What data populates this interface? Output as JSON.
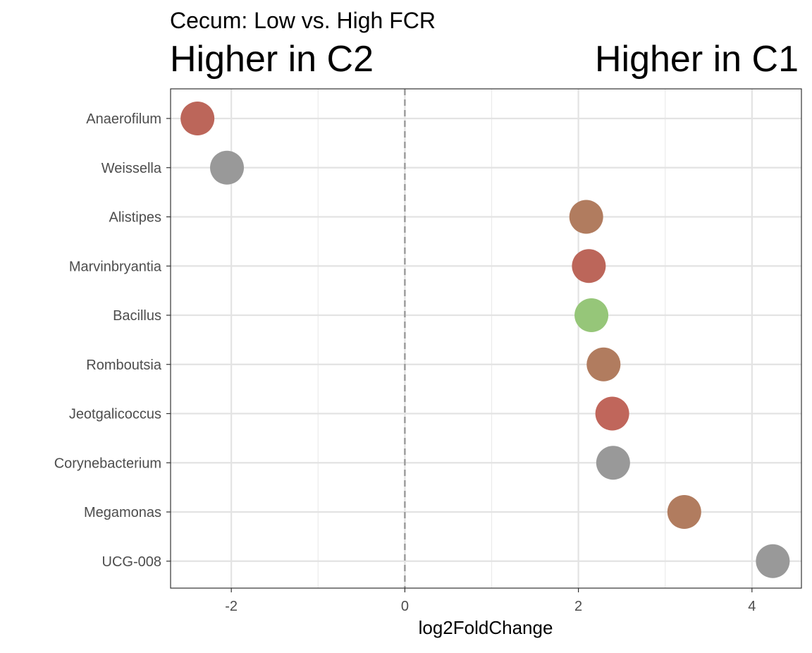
{
  "chart_data": {
    "type": "scatter",
    "subtitle": "Cecum: Low vs. High FCR",
    "left_label": "Higher in C2",
    "right_label": "Higher in C1",
    "xlabel": "log2FoldChange",
    "ylabel": "",
    "xlim": [
      -2.7,
      4.57
    ],
    "xticks": [
      -2,
      0,
      2,
      4
    ],
    "xtick_labels": [
      "-2",
      "0",
      "2",
      "4"
    ],
    "reference_line": {
      "x": 0,
      "style": "dashed"
    },
    "grid": true,
    "points": [
      {
        "genus": "Anaerofilum",
        "x": -2.39,
        "color": "#bc665a"
      },
      {
        "genus": "Weissella",
        "x": -2.05,
        "color": "#999999"
      },
      {
        "genus": "Alistipes",
        "x": 2.09,
        "color": "#b17c5f"
      },
      {
        "genus": "Marvinbryantia",
        "x": 2.12,
        "color": "#bc665a"
      },
      {
        "genus": "Bacillus",
        "x": 2.15,
        "color": "#96c679"
      },
      {
        "genus": "Romboutsia",
        "x": 2.29,
        "color": "#b17c5f"
      },
      {
        "genus": "Jeotgalicoccus",
        "x": 2.39,
        "color": "#c0665b"
      },
      {
        "genus": "Corynebacterium",
        "x": 2.4,
        "color": "#999999"
      },
      {
        "genus": "Megamonas",
        "x": 3.22,
        "color": "#b17c5f"
      },
      {
        "genus": "UCG-008",
        "x": 4.24,
        "color": "#999999"
      }
    ]
  }
}
